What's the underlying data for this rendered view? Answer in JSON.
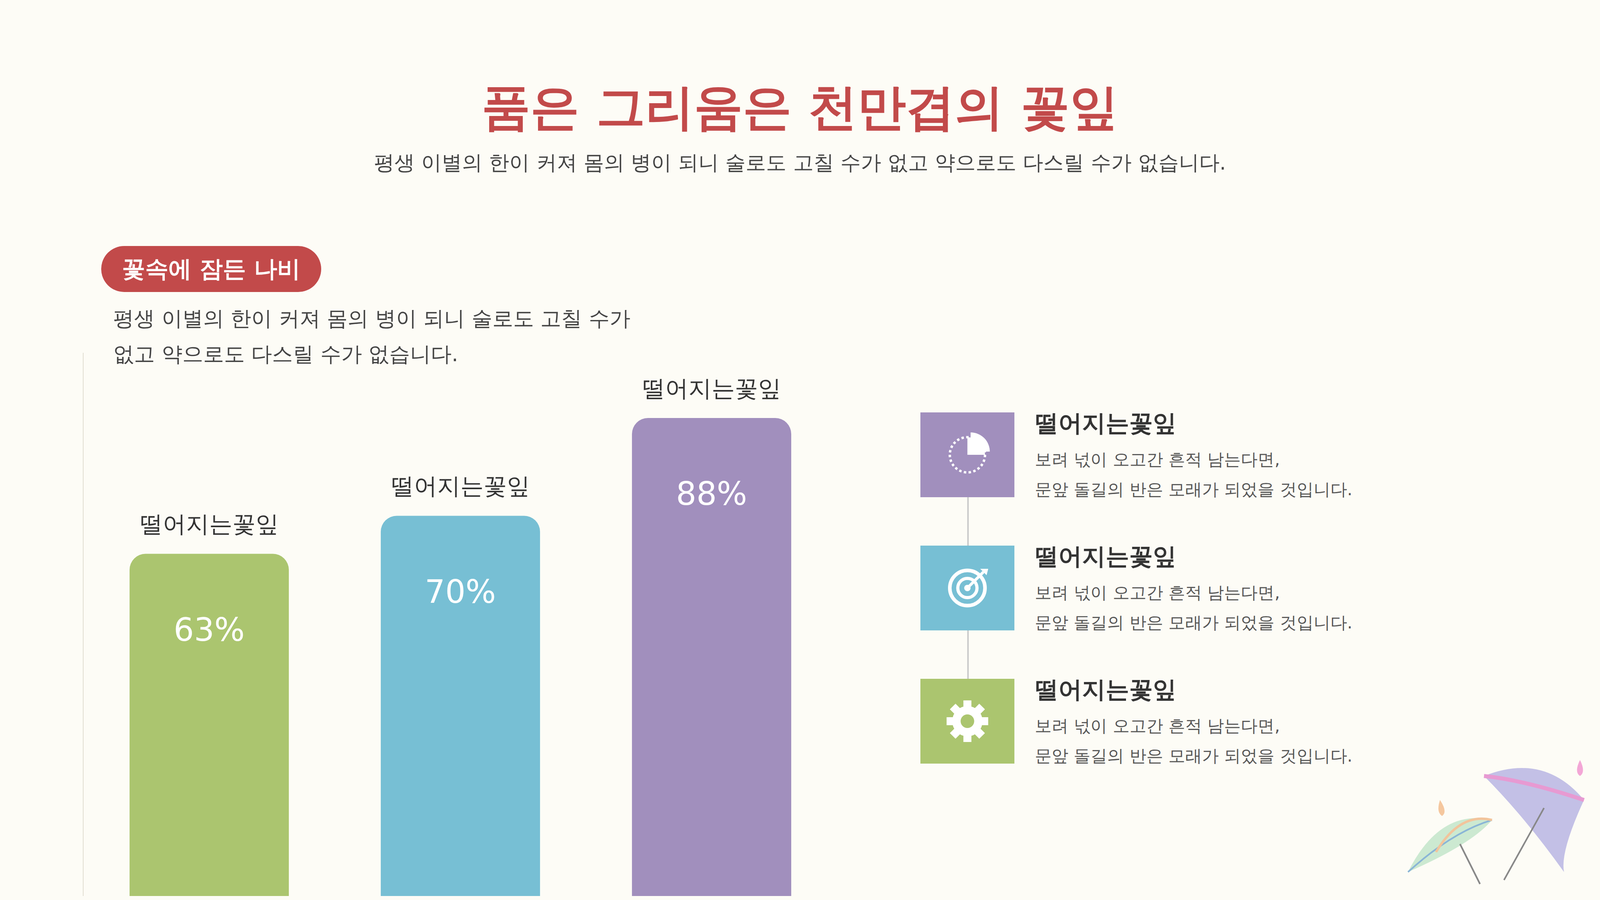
{
  "header": {
    "title": "품은 그리움은 천만겹의 꽃잎",
    "subtitle": "평생 이별의 한이 커져 몸의 병이 되니 술로도 고칠 수가 없고 약으로도 다스릴 수가 없습니다."
  },
  "section": {
    "badge": "꽃속에 잠든 나비",
    "lines": [
      "평생 이별의 한이 커져 몸의 병이 되니 술로도 고칠 수가",
      "없고 약으로도 다스릴 수가 없습니다."
    ]
  },
  "chart_data": {
    "type": "bar",
    "categories": [
      "떨어지는꽃잎",
      "떨어지는꽃잎",
      "떨어지는꽃잎"
    ],
    "values": [
      63,
      70,
      88
    ],
    "value_labels": [
      "63%",
      "70%",
      "88%"
    ],
    "colors": [
      "#abc56f",
      "#77bfd4",
      "#a18fbd"
    ],
    "ylim": [
      0,
      100
    ],
    "data_labels": true,
    "tick_labels": false,
    "grid": false
  },
  "list": {
    "items": [
      {
        "title": "떨어지는꽃잎",
        "lines": [
          "보려 넋이 오고간 흔적 남는다면,",
          "문앞 돌길의 반은 모래가 되었을 것입니다."
        ],
        "color": "#a18fbd"
      },
      {
        "title": "떨어지는꽃잎",
        "lines": [
          "보려 넋이 오고간 흔적 남는다면,",
          "문앞 돌길의 반은 모래가 되었을 것입니다."
        ],
        "color": "#77bfd4"
      },
      {
        "title": "떨어지는꽃잎",
        "lines": [
          "보려 넋이 오고간 흔적 남는다면,",
          "문앞 돌길의 반은 모래가 되었을 것입니다."
        ],
        "color": "#abc56f"
      }
    ]
  }
}
